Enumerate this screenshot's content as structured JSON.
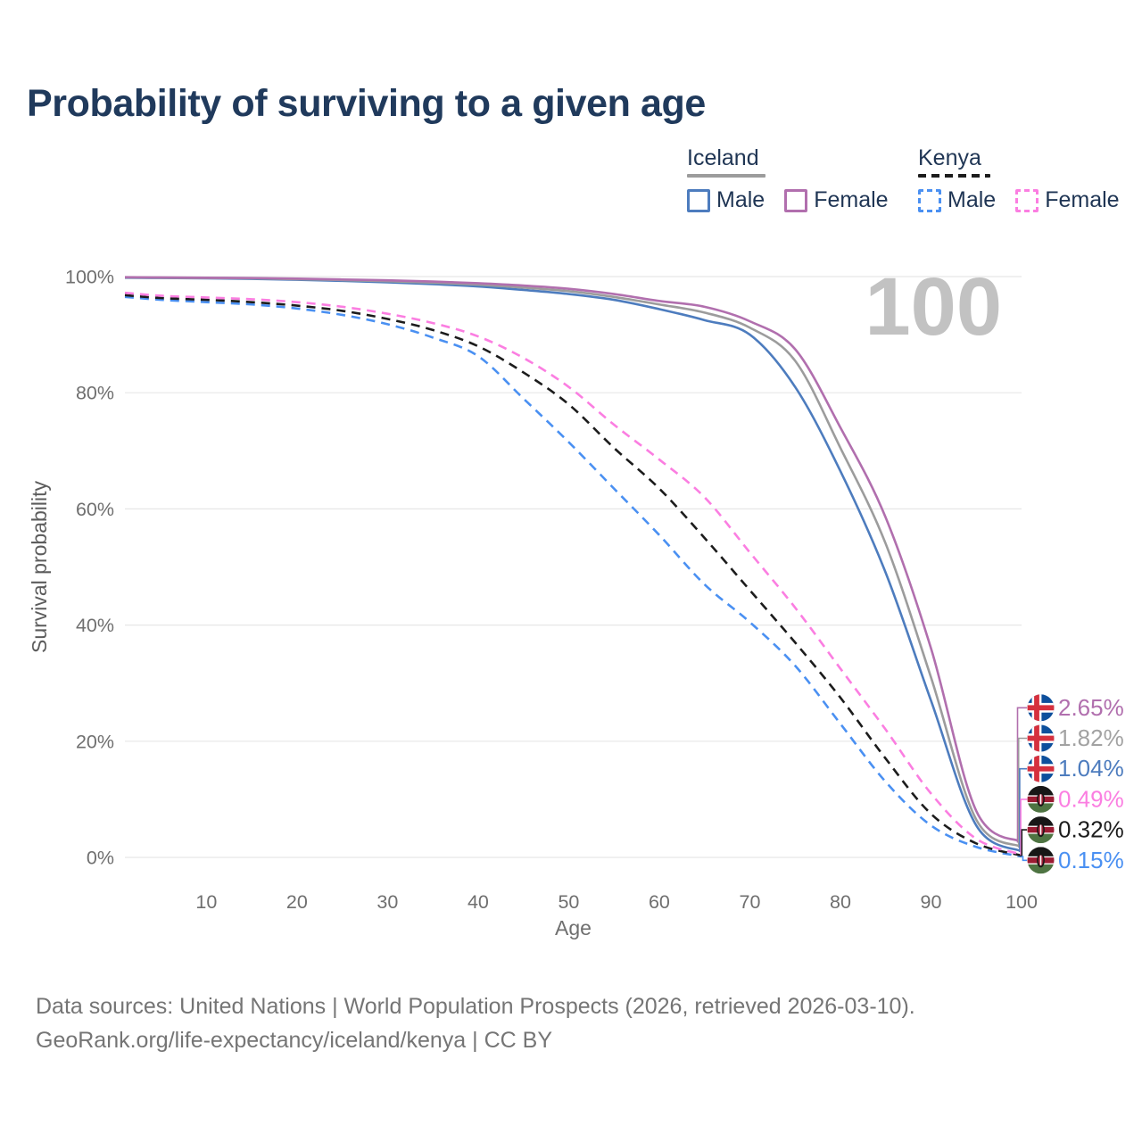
{
  "legend": {
    "iceland": {
      "title": "Iceland",
      "line_style": "solid",
      "underline_color": "#9c9c9c",
      "items": [
        {
          "label": "Male",
          "color": "#4d7cbe"
        },
        {
          "label": "Female",
          "color": "#b16fae"
        }
      ]
    },
    "kenya": {
      "title": "Kenya",
      "line_style": "dashed",
      "underline_color": "#1c1c1c",
      "items": [
        {
          "label": "Male",
          "color": "#4a90f2"
        },
        {
          "label": "Female",
          "color": "#fb7ee1"
        }
      ]
    }
  },
  "chart_data": {
    "type": "line",
    "title": "Probability of surviving to a given age",
    "xlabel": "Age",
    "ylabel": "Survival probability",
    "xlim": [
      1,
      100
    ],
    "ylim": [
      0,
      100
    ],
    "grid": true,
    "hover_age_label": "100",
    "x_ticks": [
      10,
      20,
      30,
      40,
      50,
      60,
      70,
      80,
      90,
      100
    ],
    "y_ticks": [
      0,
      20,
      40,
      60,
      80,
      100
    ],
    "y_tick_suffix": "%",
    "ages": [
      1,
      5,
      10,
      15,
      20,
      25,
      30,
      35,
      40,
      45,
      50,
      55,
      60,
      65,
      70,
      75,
      80,
      85,
      90,
      95,
      100
    ],
    "series": [
      {
        "name": "Iceland Female",
        "country": "Iceland",
        "sex": "Female",
        "style": "solid",
        "color": "#b16fae",
        "end_label": "2.65%",
        "end_label_color": "#b16fae",
        "flag": "iceland",
        "values": [
          99.9,
          99.85,
          99.8,
          99.75,
          99.65,
          99.5,
          99.35,
          99.15,
          98.85,
          98.45,
          97.9,
          97.0,
          95.8,
          94.8,
          92.3,
          87.5,
          74.0,
          58.5,
          36.0,
          8.0,
          2.65
        ]
      },
      {
        "name": "Iceland Both sexes",
        "country": "Iceland",
        "sex": "Both",
        "style": "solid",
        "color": "#9c9c9c",
        "end_label": "1.82%",
        "end_label_color": "#a2a2a2",
        "flag": "iceland",
        "values": [
          99.85,
          99.8,
          99.75,
          99.7,
          99.55,
          99.4,
          99.2,
          98.95,
          98.6,
          98.1,
          97.5,
          96.5,
          95.2,
          93.8,
          91.2,
          85.5,
          70.5,
          54.0,
          31.0,
          6.5,
          1.82
        ]
      },
      {
        "name": "Iceland Male",
        "country": "Iceland",
        "sex": "Male",
        "style": "solid",
        "color": "#4d7cbe",
        "end_label": "1.04%",
        "end_label_color": "#4d7cbe",
        "flag": "iceland",
        "values": [
          99.8,
          99.75,
          99.7,
          99.6,
          99.45,
          99.25,
          99.0,
          98.7,
          98.3,
          97.7,
          97.0,
          96.0,
          94.4,
          92.5,
          90.0,
          81.0,
          66.5,
          49.0,
          27.0,
          5.5,
          1.04
        ]
      },
      {
        "name": "Kenya Female",
        "country": "Kenya",
        "sex": "Female",
        "style": "dashed",
        "color": "#fb7ee1",
        "end_label": "0.49%",
        "end_label_color": "#fb7ee1",
        "flag": "kenya",
        "values": [
          97.2,
          96.7,
          96.4,
          96.1,
          95.6,
          94.8,
          93.6,
          92.0,
          89.7,
          86.0,
          81.0,
          74.5,
          68.5,
          62.0,
          52.5,
          43.0,
          32.5,
          22.0,
          11.0,
          3.2,
          0.49
        ]
      },
      {
        "name": "Kenya Both sexes",
        "country": "Kenya",
        "sex": "Both",
        "style": "dashed",
        "color": "#1c1c1c",
        "end_label": "0.32%",
        "end_label_color": "#1c1c1c",
        "flag": "kenya",
        "values": [
          96.8,
          96.3,
          96.0,
          95.6,
          95.0,
          94.1,
          92.7,
          90.8,
          88.0,
          83.5,
          78.0,
          70.5,
          63.5,
          55.0,
          46.0,
          37.0,
          27.5,
          17.0,
          7.5,
          2.4,
          0.32
        ]
      },
      {
        "name": "Kenya Male",
        "country": "Kenya",
        "sex": "Male",
        "style": "dashed",
        "color": "#4a90f2",
        "end_label": "0.15%",
        "end_label_color": "#4a90f2",
        "flag": "kenya",
        "values": [
          96.5,
          96.0,
          95.6,
          95.2,
          94.5,
          93.4,
          91.8,
          89.5,
          86.3,
          79.0,
          71.5,
          63.5,
          55.5,
          47.0,
          40.5,
          33.0,
          23.0,
          13.0,
          5.5,
          1.8,
          0.15
        ]
      }
    ]
  },
  "footer": {
    "line1": "Data sources: United Nations | World Population Prospects (2026, retrieved 2026-03-10).",
    "line2": "GeoRank.org/life-expectancy/iceland/kenya | CC BY"
  }
}
